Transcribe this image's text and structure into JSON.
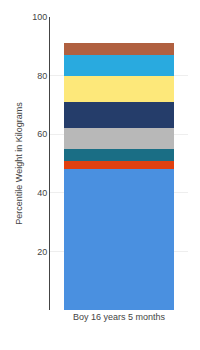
{
  "chart_data": {
    "type": "bar",
    "categories": [
      "Boy 16 years 5 months"
    ],
    "series": [
      {
        "color": "#4a90e0",
        "values": [
          48
        ]
      },
      {
        "color": "#e04010",
        "values": [
          3
        ]
      },
      {
        "color": "#1a6e85",
        "values": [
          4
        ]
      },
      {
        "color": "#b8b8b8",
        "values": [
          7
        ]
      },
      {
        "color": "#253d6a",
        "values": [
          9
        ]
      },
      {
        "color": "#fde87a",
        "values": [
          9
        ]
      },
      {
        "color": "#29aadf",
        "values": [
          7
        ]
      },
      {
        "color": "#b06040",
        "values": [
          4
        ]
      }
    ],
    "stacked": true,
    "ylabel": "Percentile Weight in Kilograms",
    "ylim": [
      0,
      100
    ],
    "yticks": [
      20,
      40,
      60,
      80,
      100
    ],
    "grid": true
  }
}
